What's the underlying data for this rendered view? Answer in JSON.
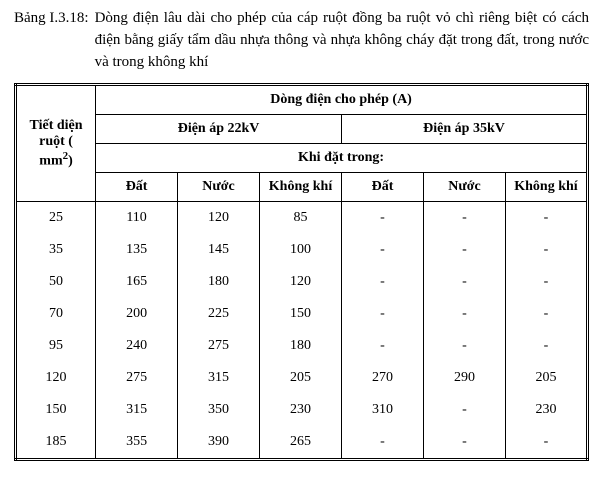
{
  "caption": {
    "label": "Bảng I.3.18:",
    "text": "Dòng điện lâu dài cho phép của cáp ruột đồng ba ruột vỏ chì riêng biệt có cách điện bằng giấy tẩm dầu nhựa thông và nhựa không cháy đặt trong đất, trong nước và trong không khí"
  },
  "table": {
    "header": {
      "cross_section_html": "Tiết diện ruột ( mm<span class=\"sup\">2</span>)",
      "current_allowed": "Dòng điện cho phép",
      "current_unit": "(A)",
      "voltage_22": "Điện áp 22kV",
      "voltage_35": "Điện áp 35kV",
      "placed_in": "Khi đặt trong:",
      "cols": [
        "Đất",
        "Nước",
        "Không khí",
        "Đất",
        "Nước",
        "Không khí"
      ]
    },
    "rows": [
      {
        "section": "25",
        "v": [
          "110",
          "120",
          "85",
          "-",
          "-",
          "-"
        ]
      },
      {
        "section": "35",
        "v": [
          "135",
          "145",
          "100",
          "-",
          "-",
          "-"
        ]
      },
      {
        "section": "50",
        "v": [
          "165",
          "180",
          "120",
          "-",
          "-",
          "-"
        ]
      },
      {
        "section": "70",
        "v": [
          "200",
          "225",
          "150",
          "-",
          "-",
          "-"
        ]
      },
      {
        "section": "95",
        "v": [
          "240",
          "275",
          "180",
          "-",
          "-",
          "-"
        ]
      },
      {
        "section": "120",
        "v": [
          "275",
          "315",
          "205",
          "270",
          "290",
          "205"
        ]
      },
      {
        "section": "150",
        "v": [
          "315",
          "350",
          "230",
          "310",
          "-",
          "230"
        ]
      },
      {
        "section": "185",
        "v": [
          "355",
          "390",
          "265",
          "-",
          "-",
          "-"
        ]
      }
    ]
  }
}
